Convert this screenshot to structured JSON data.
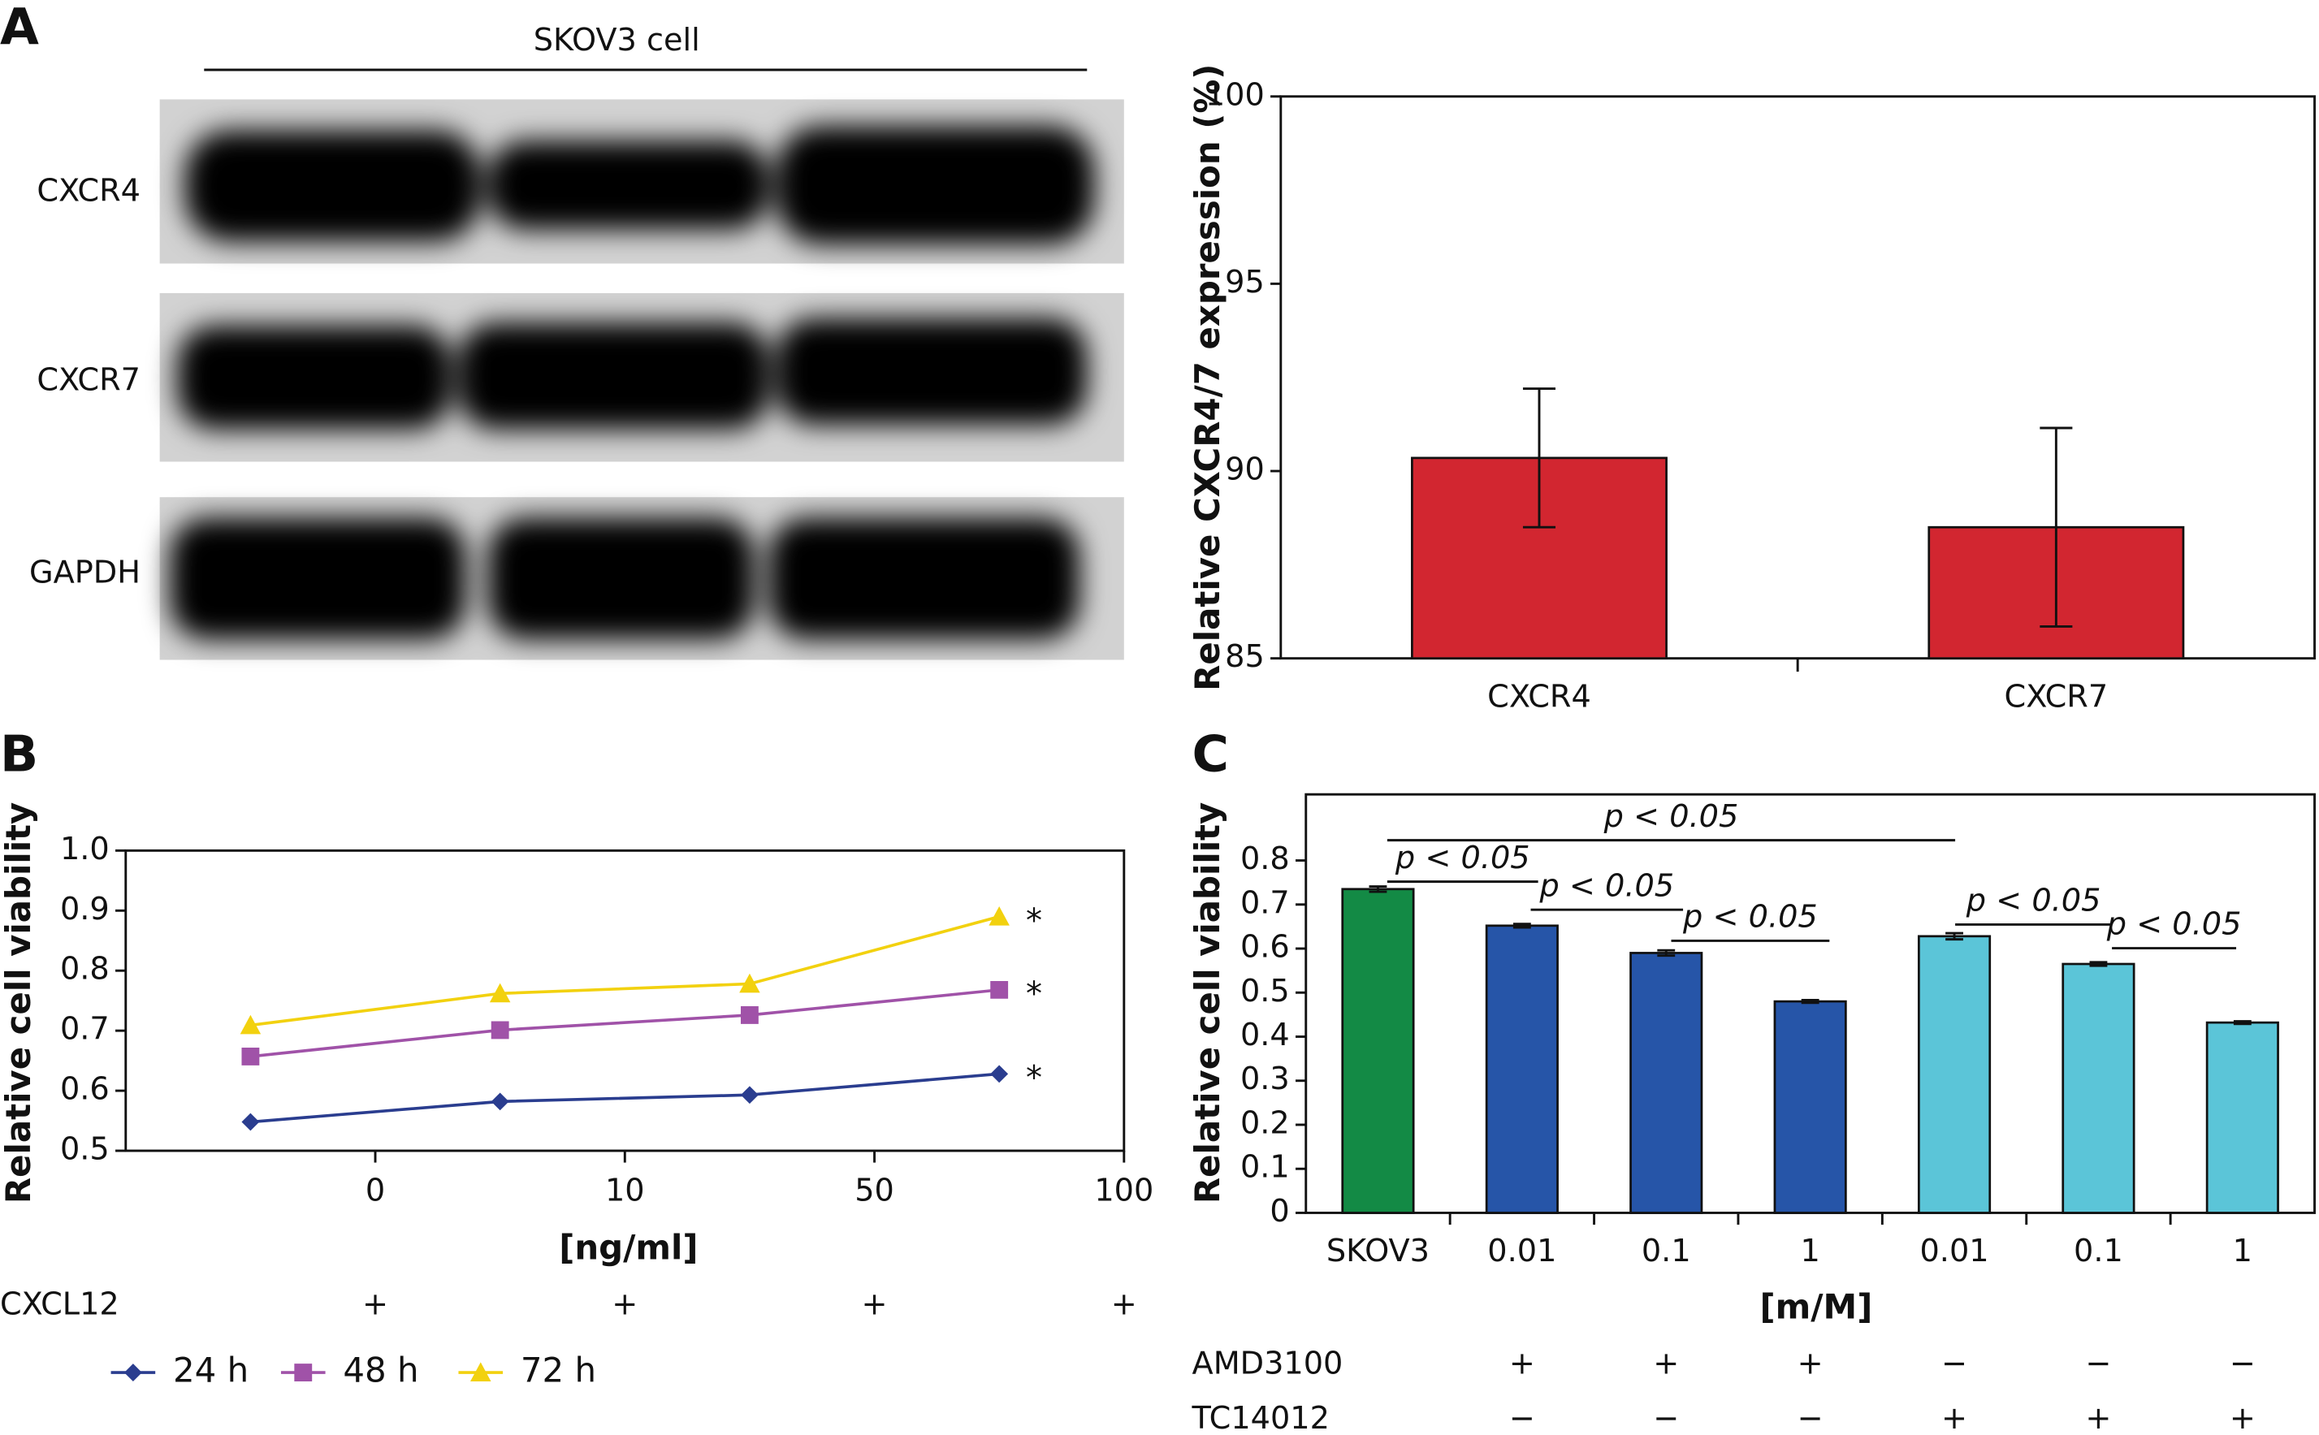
{
  "panel_labels": [
    "A",
    "B",
    "C"
  ],
  "blot": {
    "title": "SKOV3 cell",
    "rows": [
      "CXCR4",
      "CXCR7",
      "GAPDH"
    ]
  },
  "chart_data": [
    {
      "type": "bar",
      "ylabel": "Relative CXCR4/7 expression (%)",
      "categories": [
        "CXCR4",
        "CXCR7"
      ],
      "values": [
        90.35,
        88.5
      ],
      "errors": [
        1.85,
        2.65
      ],
      "colors": [
        "#d22630",
        "#d22630"
      ],
      "ylim": [
        85,
        100
      ],
      "yticks": [
        85,
        90,
        95,
        100
      ]
    },
    {
      "type": "line",
      "ylabel": "Relative cell viability",
      "xlabel": "[ng/ml]",
      "categories": [
        "0",
        "10",
        "50",
        "100"
      ],
      "series": [
        {
          "name": "24 h",
          "color": "#2a3d8f",
          "marker": "diamond",
          "values": [
            0.548,
            0.582,
            0.593,
            0.628
          ]
        },
        {
          "name": "48 h",
          "color": "#a052a8",
          "marker": "square",
          "values": [
            0.657,
            0.701,
            0.726,
            0.768
          ]
        },
        {
          "name": "72 h",
          "color": "#f2d10f",
          "marker": "triangle",
          "values": [
            0.709,
            0.762,
            0.778,
            0.89
          ]
        }
      ],
      "annotations": [
        "*",
        "*",
        "*"
      ],
      "ylim": [
        0.5,
        1
      ],
      "yticks": [
        0.5,
        0.6,
        0.7,
        0.8,
        0.9,
        {
          "value": 1,
          "label": "1.0"
        }
      ],
      "rows": [
        {
          "name": "CXCL12",
          "signs": [
            "+",
            "+",
            "+",
            "+"
          ]
        }
      ],
      "legend": "bottom"
    },
    {
      "type": "bar",
      "ylabel": "Relative cell viability",
      "xlabel": "[m/M]",
      "categories": [
        "SKOV3",
        "0.01",
        "0.1",
        "1",
        "0.01",
        "0.1",
        "1"
      ],
      "values": [
        0.735,
        0.652,
        0.59,
        0.48,
        0.628,
        0.565,
        0.432
      ],
      "errors": [
        0.006,
        0.004,
        0.006,
        0.003,
        0.007,
        0.004,
        0.003
      ],
      "colors": [
        "#138a45",
        "#2655a8",
        "#2655a8",
        "#2655a8",
        "#5bc5d8",
        "#5bc5d8",
        "#5bc5d8"
      ],
      "ylim": [
        0,
        0.95
      ],
      "yticks": [
        0,
        0.1,
        0.2,
        0.3,
        0.4,
        0.5,
        0.6,
        0.7,
        0.8
      ],
      "annotations": [
        "p < 0.05",
        "p < 0.05",
        "p < 0.05",
        "p < 0.05",
        "p < 0.05",
        "p < 0.05"
      ],
      "rows": [
        {
          "name": "AMD3100",
          "signs": [
            "+",
            "+",
            "+",
            "−",
            "−",
            "−"
          ]
        },
        {
          "name": "TC14012",
          "signs": [
            "−",
            "−",
            "−",
            "+",
            "+",
            "+"
          ]
        }
      ]
    }
  ]
}
